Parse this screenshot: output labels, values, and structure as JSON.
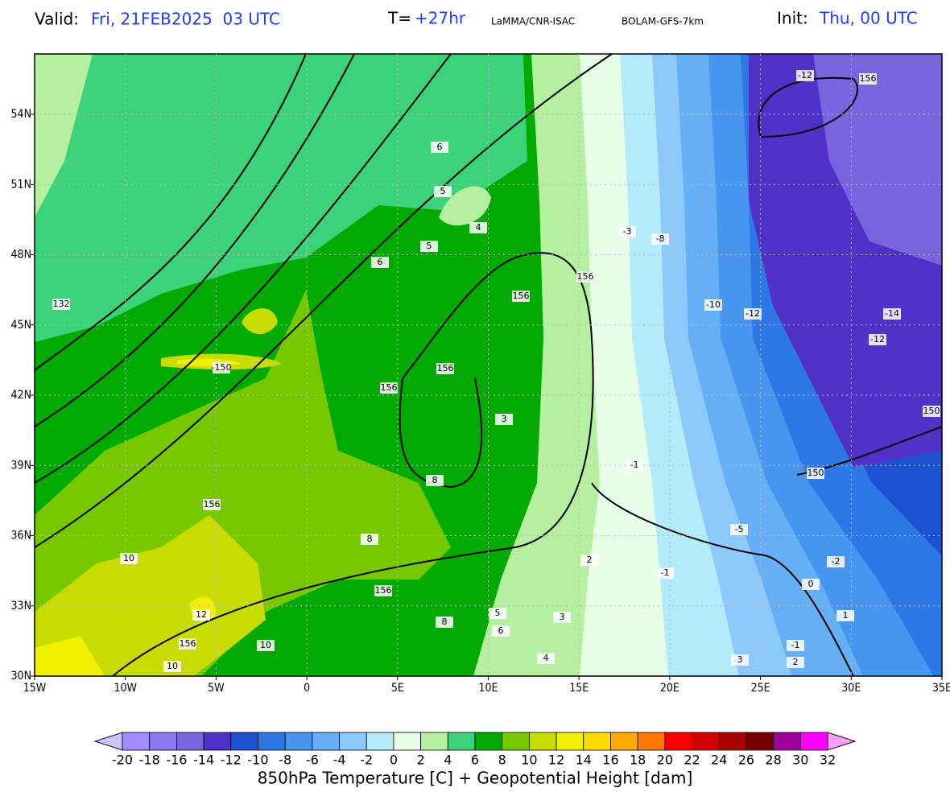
{
  "header": {
    "valid_label": "Valid:",
    "valid_value": "Fri, 21FEB2025  03 UTC",
    "lead_label": "T=",
    "lead_value": "+27hr",
    "source": "LaMMA/CNR-ISAC",
    "model": "BOLAM-GFS-7km",
    "init_label": "Init:",
    "init_value": "Thu, 00 UTC"
  },
  "map": {
    "lon_ticks": [
      "15W",
      "10W",
      "5W",
      "0",
      "5E",
      "10E",
      "15E",
      "20E",
      "25E",
      "30E",
      "35E"
    ],
    "lat_ticks": [
      "30N",
      "33N",
      "36N",
      "39N",
      "42N",
      "45N",
      "48N",
      "51N",
      "54N"
    ],
    "contour_labels": [
      156,
      -12,
      -8,
      -3,
      -10,
      -12,
      -14,
      -12,
      156,
      156,
      156,
      156,
      -150,
      156,
      156,
      156,
      150,
      150,
      132,
      6,
      5,
      4,
      5,
      6,
      8,
      8,
      10,
      12,
      10,
      10,
      3,
      2,
      -1,
      -2,
      -5,
      -1,
      0,
      1,
      -1,
      2,
      3,
      4,
      5,
      8,
      6,
      3
    ]
  },
  "colorbar": {
    "levels": [
      -20,
      -18,
      -16,
      -14,
      -12,
      -10,
      -8,
      -6,
      -4,
      -2,
      0,
      2,
      4,
      6,
      8,
      10,
      12,
      14,
      16,
      18,
      20,
      22,
      24,
      26,
      28,
      30,
      32
    ],
    "under_color": "#c8c8ff",
    "over_color": "#ff9eff",
    "colors": [
      "#a08cff",
      "#8c78f0",
      "#7864dc",
      "#5032c8",
      "#1e50d2",
      "#2d78e6",
      "#4696f0",
      "#64aff5",
      "#8cc8fa",
      "#b4ebfa",
      "#e6ffe6",
      "#b4f0a0",
      "#3cd27a",
      "#00aa00",
      "#78c800",
      "#c8dc00",
      "#f0f000",
      "#ffdc00",
      "#ffaa00",
      "#ff7800",
      "#ff0000",
      "#d20000",
      "#aa0000",
      "#780000",
      "#a000a0",
      "#ff00ff"
    ]
  },
  "caption": "850hPa Temperature [C] + Geopotential Height [dam]"
}
